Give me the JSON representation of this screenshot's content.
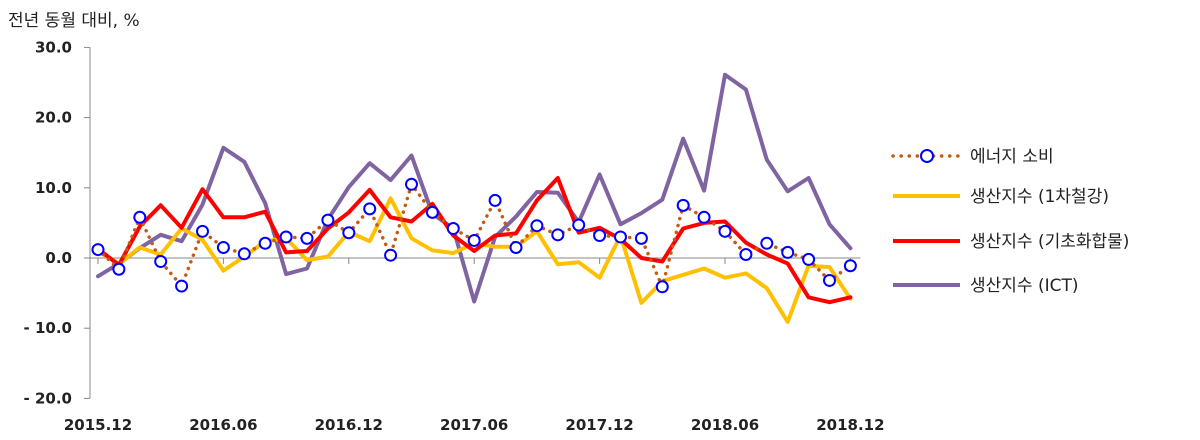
{
  "chart_data": {
    "type": "line",
    "ylabel": "전년 동월 대비, %",
    "ylim": [
      -20,
      30
    ],
    "y_ticks": [
      "30.0",
      "20.0",
      "10.0",
      "0.0",
      "- 10.0",
      "- 20.0"
    ],
    "y_tick_values": [
      30,
      20,
      10,
      0,
      -10,
      -20
    ],
    "x_tick_labels": [
      "2015.12",
      "2016.06",
      "2016.12",
      "2017.06",
      "2017.12",
      "2018.06",
      "2018.12"
    ],
    "x_tick_index": [
      0,
      6,
      12,
      18,
      24,
      30,
      36
    ],
    "x": [
      "2015.12",
      "2016.01",
      "2016.02",
      "2016.03",
      "2016.04",
      "2016.05",
      "2016.06",
      "2016.07",
      "2016.08",
      "2016.09",
      "2016.10",
      "2016.11",
      "2016.12",
      "2017.01",
      "2017.02",
      "2017.03",
      "2017.04",
      "2017.05",
      "2017.06",
      "2017.07",
      "2017.08",
      "2017.09",
      "2017.10",
      "2017.11",
      "2017.12",
      "2018.01",
      "2018.02",
      "2018.03",
      "2018.04",
      "2018.05",
      "2018.06",
      "2018.07",
      "2018.08",
      "2018.09",
      "2018.10",
      "2018.11",
      "2018.12"
    ],
    "grid": false,
    "legend_position": "right",
    "series": [
      {
        "name": "에너지 소비",
        "style": "dotted-circles",
        "color": "#C55A11",
        "marker_color": "#0000FF",
        "values": [
          1.2,
          -1.6,
          5.8,
          -0.5,
          -4.0,
          3.8,
          1.5,
          0.6,
          2.1,
          3.0,
          2.8,
          5.4,
          3.6,
          7.0,
          0.4,
          10.5,
          6.5,
          4.2,
          2.5,
          8.2,
          1.5,
          4.6,
          3.3,
          4.7,
          3.2,
          3.0,
          2.8,
          -4.1,
          7.5,
          5.8,
          3.8,
          0.5,
          2.1,
          0.8,
          -0.2,
          -3.2,
          -1.1
        ]
      },
      {
        "name": "생산지수 (1차철강)",
        "style": "solid",
        "color": "#FFC000",
        "values": [
          1.0,
          -0.8,
          1.5,
          0.5,
          4.2,
          2.6,
          -1.8,
          0.2,
          2.4,
          2.8,
          -0.3,
          0.2,
          3.7,
          2.4,
          8.5,
          2.8,
          1.1,
          0.7,
          2.1,
          1.6,
          1.6,
          3.8,
          -0.9,
          -0.6,
          -2.8,
          3.2,
          -6.4,
          -3.3,
          -2.4,
          -1.5,
          -2.8,
          -2.2,
          -4.3,
          -9.1,
          -1.1,
          -1.3,
          -5.8
        ]
      },
      {
        "name": "생산지수 (기초화합물)",
        "style": "solid",
        "color": "#FF0000",
        "values": [
          1.3,
          -1.0,
          4.5,
          7.5,
          4.3,
          9.8,
          5.8,
          5.8,
          6.6,
          0.8,
          1.0,
          4.2,
          6.5,
          9.7,
          5.8,
          5.2,
          7.7,
          3.2,
          1.0,
          3.2,
          3.5,
          8.2,
          11.4,
          3.6,
          4.3,
          2.7,
          0.0,
          -0.5,
          4.2,
          5.0,
          5.2,
          2.2,
          0.5,
          -0.8,
          -5.6,
          -6.3,
          -5.6
        ]
      },
      {
        "name": "생산지수 (ICT)",
        "style": "solid",
        "color": "#8064A2",
        "values": [
          -2.6,
          -0.8,
          1.4,
          3.3,
          2.4,
          7.6,
          15.7,
          13.7,
          7.8,
          -2.3,
          -1.5,
          5.5,
          10.1,
          13.5,
          11.1,
          14.6,
          6.3,
          4.2,
          -6.2,
          3.0,
          5.9,
          9.4,
          9.3,
          5.1,
          11.9,
          4.8,
          6.4,
          8.3,
          17.0,
          9.6,
          26.1,
          24.0,
          14.0,
          9.5,
          11.4,
          4.8,
          1.4
        ]
      }
    ]
  }
}
